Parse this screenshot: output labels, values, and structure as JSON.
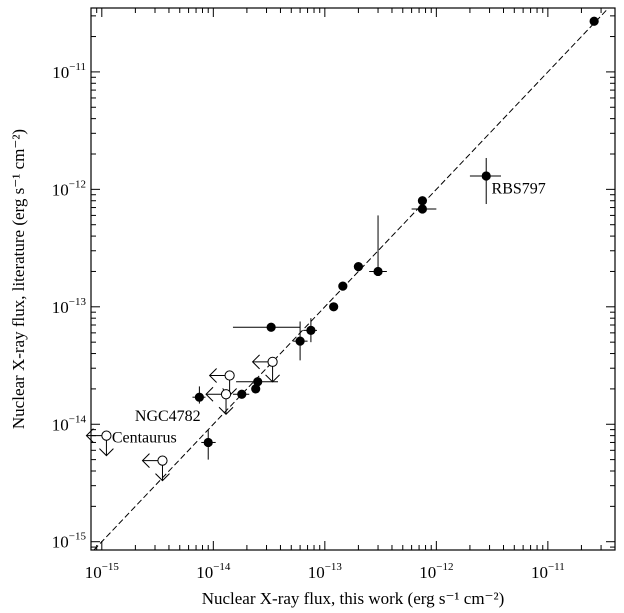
{
  "chart_data": {
    "type": "scatter",
    "xscale": "log",
    "yscale": "log",
    "xlim": [
      8e-16,
      4e-11
    ],
    "ylim": [
      8.5e-16,
      3.5e-11
    ],
    "xlabel": "Nuclear X-ray flux, this work (erg s⁻¹ cm⁻²)",
    "ylabel": "Nuclear X-ray flux, literature (erg s⁻¹ cm⁻²)",
    "x_ticks": [
      {
        "value": 1e-15,
        "mant": "10",
        "exp": "−15"
      },
      {
        "value": 1e-14,
        "mant": "10",
        "exp": "−14"
      },
      {
        "value": 1e-13,
        "mant": "10",
        "exp": "−13"
      },
      {
        "value": 1e-12,
        "mant": "10",
        "exp": "−12"
      },
      {
        "value": 1e-11,
        "mant": "10",
        "exp": "−11"
      }
    ],
    "y_ticks": [
      {
        "value": 1e-15,
        "mant": "10",
        "exp": "−15"
      },
      {
        "value": 1e-14,
        "mant": "10",
        "exp": "−14"
      },
      {
        "value": 1e-13,
        "mant": "10",
        "exp": "−13"
      },
      {
        "value": 1e-12,
        "mant": "10",
        "exp": "−12"
      },
      {
        "value": 1e-11,
        "mant": "10",
        "exp": "−11"
      }
    ],
    "one_to_one_line": true,
    "detections": [
      {
        "x": 2.6e-11,
        "y": 2.7e-11
      },
      {
        "x": 2.8e-12,
        "y": 1.3e-12,
        "xerr": [
          2e-12,
          3.8e-12
        ],
        "yerr": [
          7.5e-13,
          1.85e-12
        ]
      },
      {
        "x": 7.5e-13,
        "y": 8e-13
      },
      {
        "x": 7.5e-13,
        "y": 6.8e-13,
        "xerr": [
          6e-13,
          1e-12
        ]
      },
      {
        "x": 3e-13,
        "y": 2e-13,
        "xerr": [
          2.5e-13,
          3.6e-13
        ],
        "yerr": [
          1.9e-13,
          6e-13
        ]
      },
      {
        "x": 2e-13,
        "y": 2.2e-13
      },
      {
        "x": 1.45e-13,
        "y": 1.5e-13
      },
      {
        "x": 1.2e-13,
        "y": 1e-13
      },
      {
        "x": 7.5e-14,
        "y": 6.3e-14,
        "xerr": [
          6.4e-14,
          8.5e-14
        ],
        "yerr": [
          5e-14,
          8e-14
        ]
      },
      {
        "x": 6e-14,
        "y": 5.1e-14,
        "xerr": [
          5.2e-14,
          7e-14
        ],
        "yerr": [
          3.5e-14,
          7.5e-14
        ]
      },
      {
        "x": 3.3e-14,
        "y": 6.7e-14,
        "xerr": [
          1.5e-14,
          6e-14
        ]
      },
      {
        "x": 2.5e-14,
        "y": 2.3e-14,
        "xerr": [
          1.6e-14,
          3.8e-14
        ]
      },
      {
        "x": 2.4e-14,
        "y": 2e-14
      },
      {
        "x": 1.8e-14,
        "y": 1.8e-14,
        "xerr": [
          1.5e-14,
          2.1e-14
        ]
      },
      {
        "x": 7.5e-15,
        "y": 1.7e-14,
        "xerr": [
          6.5e-15,
          8.5e-15
        ],
        "yerr": [
          1.5e-14,
          2.1e-14
        ]
      },
      {
        "x": 9e-15,
        "y": 7e-15,
        "xerr": [
          7.8e-15,
          1.05e-14
        ],
        "yerr": [
          5e-15,
          9e-15
        ]
      }
    ],
    "upper_limits": [
      {
        "x": 3.4e-14,
        "y": 3.4e-14
      },
      {
        "x": 1.4e-14,
        "y": 2.6e-14
      },
      {
        "x": 1.3e-14,
        "y": 1.8e-14
      },
      {
        "x": 3.5e-15,
        "y": 4.9e-15
      },
      {
        "x": 1.1e-15,
        "y": 8e-15
      }
    ],
    "annotations": [
      {
        "text": "RBS797",
        "x": 3e-12,
        "y": 1e-12
      },
      {
        "text": "NGC4782",
        "x": 1.9e-15,
        "y": 1.15e-14
      },
      {
        "text": "Centaurus",
        "x": 1.18e-15,
        "y": 7.6e-15
      }
    ]
  }
}
